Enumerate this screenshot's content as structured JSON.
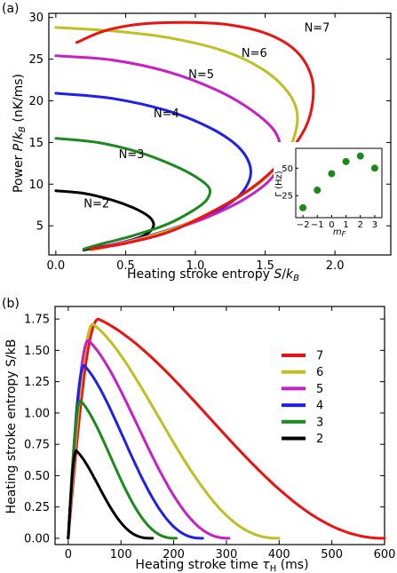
{
  "figure": {
    "panel_a_label": "(a)",
    "panel_b_label": "(b)"
  },
  "chart_data": [
    {
      "type": "line",
      "xlabel": "Heating stroke entropy S/k_B",
      "ylabel": "Power P/k_B (nK/ms)",
      "xlim": [
        -0.05,
        2.4
      ],
      "ylim": [
        1.5,
        30.5
      ],
      "xticks": [
        "0.0",
        "0.5",
        "1.0",
        "1.5",
        "2.0"
      ],
      "yticks": [
        "5",
        "10",
        "15",
        "20",
        "25",
        "30"
      ],
      "grid": false,
      "series": [
        {
          "name": "N=2",
          "color": "#000000",
          "x": [
            0.0,
            0.2,
            0.4,
            0.55,
            0.66,
            0.7,
            0.68,
            0.6,
            0.45,
            0.3,
            0.2
          ],
          "y": [
            9.2,
            8.9,
            8.1,
            7.2,
            6.2,
            5.3,
            4.4,
            3.6,
            2.9,
            2.4,
            2.1
          ]
        },
        {
          "name": "N=3",
          "color": "#1a8a1a",
          "x": [
            0.0,
            0.3,
            0.6,
            0.85,
            1.0,
            1.1,
            1.08,
            0.98,
            0.8,
            0.55,
            0.3,
            0.2
          ],
          "y": [
            15.5,
            15.0,
            13.8,
            12.2,
            10.9,
            9.5,
            8.1,
            6.8,
            5.2,
            3.8,
            2.7,
            2.2
          ]
        },
        {
          "name": "N=4",
          "color": "#1f1fee",
          "x": [
            0.0,
            0.4,
            0.8,
            1.1,
            1.3,
            1.39,
            1.38,
            1.28,
            1.05,
            0.75,
            0.45,
            0.25
          ],
          "y": [
            20.9,
            20.3,
            18.8,
            16.8,
            14.6,
            12.3,
            10.2,
            8.1,
            6.0,
            4.2,
            2.9,
            2.2
          ]
        },
        {
          "name": "N=5",
          "color": "#c81ec8",
          "x": [
            0.0,
            0.4,
            0.8,
            1.15,
            1.4,
            1.57,
            1.61,
            1.55,
            1.35,
            1.05,
            0.7,
            0.4,
            0.25
          ],
          "y": [
            25.4,
            24.9,
            23.5,
            21.3,
            18.9,
            16.3,
            13.5,
            10.8,
            8.2,
            5.8,
            3.9,
            2.7,
            2.2
          ]
        },
        {
          "name": "N=6",
          "color": "#bfbf22",
          "x": [
            0.0,
            0.4,
            0.8,
            1.2,
            1.48,
            1.66,
            1.73,
            1.7,
            1.6,
            1.45,
            1.2,
            0.9,
            0.6,
            0.35,
            0.25
          ],
          "y": [
            28.8,
            28.4,
            27.6,
            26.0,
            23.8,
            21.1,
            18.4,
            15.3,
            12.5,
            10.0,
            7.4,
            5.0,
            3.4,
            2.4,
            2.1
          ]
        },
        {
          "name": "N=7",
          "color": "#ee1111",
          "x": [
            0.15,
            0.35,
            0.6,
            0.95,
            1.25,
            1.52,
            1.72,
            1.83,
            1.84,
            1.78,
            1.62,
            1.4,
            1.1,
            0.8,
            0.5,
            0.25
          ],
          "y": [
            27.0,
            28.4,
            29.2,
            29.4,
            29.1,
            28.0,
            26.0,
            23.0,
            19.8,
            16.5,
            12.8,
            9.5,
            6.5,
            4.2,
            2.9,
            2.2
          ]
        }
      ],
      "annotations": [
        "N=2",
        "N=3",
        "N=4",
        "N=5",
        "N=6",
        "N=7"
      ]
    },
    {
      "type": "scatter",
      "xlabel": "m_F",
      "ylabel": "Γ (Hz)",
      "xlim": [
        -2.5,
        3.5
      ],
      "ylim": [
        5,
        68
      ],
      "xticks": [
        "−2",
        "−1",
        "0",
        "1",
        "2",
        "3"
      ],
      "yticks": [
        "25",
        "50"
      ],
      "color": "#1a8a1a",
      "x": [
        -2,
        -1,
        0,
        1,
        2,
        3
      ],
      "y": [
        14,
        30,
        45,
        56,
        61,
        50
      ]
    },
    {
      "type": "line",
      "xlabel": "Heating stroke time τ_H (ms)",
      "ylabel": "Heating stroke entropy S/kB",
      "xlim": [
        -25,
        600
      ],
      "ylim": [
        -0.05,
        1.85
      ],
      "xticks": [
        "0",
        "100",
        "200",
        "300",
        "400",
        "500",
        "600"
      ],
      "yticks": [
        "0.00",
        "0.25",
        "0.50",
        "0.75",
        "1.00",
        "1.25",
        "1.50",
        "1.75"
      ],
      "grid": false,
      "legend_position": "upper-center",
      "series": [
        {
          "name": "7",
          "color": "#ee1111",
          "peak_x": 57,
          "peak_y": 1.75,
          "end_x": 600,
          "tail_k": 1.0
        },
        {
          "name": "6",
          "color": "#bfbf22",
          "peak_x": 47,
          "peak_y": 1.71,
          "end_x": 400,
          "tail_k": 1.1
        },
        {
          "name": "5",
          "color": "#c81ec8",
          "peak_x": 38,
          "peak_y": 1.58,
          "end_x": 305,
          "tail_k": 1.1
        },
        {
          "name": "4",
          "color": "#1f1fee",
          "peak_x": 30,
          "peak_y": 1.38,
          "end_x": 255,
          "tail_k": 1.15
        },
        {
          "name": "3",
          "color": "#1a8a1a",
          "peak_x": 23,
          "peak_y": 1.1,
          "end_x": 205,
          "tail_k": 1.2
        },
        {
          "name": "2",
          "color": "#000000",
          "peak_x": 15,
          "peak_y": 0.7,
          "end_x": 160,
          "tail_k": 1.3
        }
      ]
    }
  ]
}
